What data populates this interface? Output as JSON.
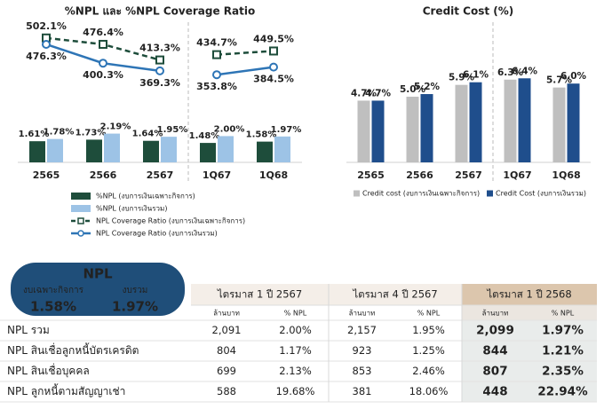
{
  "chart_data": [
    {
      "type": "combo",
      "title": "%NPL และ %NPL Coverage Ratio",
      "categories": [
        "2565",
        "2566",
        "2567",
        "1Q67",
        "1Q68"
      ],
      "ylim": [
        0,
        10
      ],
      "y2lim": [
        0,
        530
      ],
      "series": [
        {
          "name": "%NPL (งบการเงินเฉพาะกิจการ)",
          "type": "bar",
          "color": "#1e4d3b",
          "label_color": "#1e4d3b",
          "values": [
            1.61,
            1.73,
            1.64,
            1.48,
            1.58
          ],
          "value_labels": [
            "1.61%",
            "1.73%",
            "1.64%",
            "1.48%",
            "1.58%"
          ]
        },
        {
          "name": "%NPL (งบการเงินรวม)",
          "type": "bar",
          "color": "#9dc3e6",
          "label_color": "#2e75b6",
          "values": [
            1.78,
            2.19,
            1.95,
            2.0,
            1.97
          ],
          "value_labels": [
            "1.78%",
            "2.19%",
            "1.95%",
            "2.00%",
            "1.97%"
          ]
        },
        {
          "name": "NPL Coverage Ratio (งบการเงินเฉพาะกิจการ)",
          "type": "line",
          "axis": "y2",
          "dashed": true,
          "marker": "square",
          "color": "#1e4d3b",
          "label_color": "#1e4d3b",
          "values": [
            502.1,
            476.4,
            413.3,
            434.7,
            449.5
          ],
          "value_labels": [
            "502.1%",
            "476.4%",
            "413.3%",
            "434.7%",
            "449.5%"
          ]
        },
        {
          "name": "NPL Coverage Ratio (งบการเงินรวม)",
          "type": "line",
          "axis": "y2",
          "dashed": false,
          "marker": "circle",
          "color": "#2e75b6",
          "label_color": "#2e75b6",
          "values": [
            476.3,
            400.3,
            369.3,
            353.8,
            384.5
          ],
          "value_labels": [
            "476.3%",
            "400.3%",
            "369.3%",
            "353.8%",
            "384.5%"
          ]
        }
      ]
    },
    {
      "type": "bar",
      "title": "Credit Cost (%)",
      "categories": [
        "2565",
        "2566",
        "2567",
        "1Q67",
        "1Q68"
      ],
      "ylim": [
        0,
        10
      ],
      "series": [
        {
          "name": "Credit cost (งบการเงินเฉพาะกิจการ)",
          "color": "#bfbfbf",
          "label_color": "#404040",
          "values": [
            4.7,
            5.0,
            5.9,
            6.3,
            5.7
          ],
          "value_labels": [
            "4.7%",
            "5.0%",
            "5.9%",
            "6.3%",
            "5.7%"
          ]
        },
        {
          "name": "Credit Cost (งบการเงินรวม)",
          "color": "#1f4e8c",
          "label_color": "#1f4e8c",
          "values": [
            4.7,
            5.2,
            6.1,
            6.4,
            6.0
          ],
          "value_labels": [
            "4.7%",
            "5.2%",
            "6.1%",
            "6.4%",
            "6.0%"
          ]
        }
      ]
    }
  ],
  "npl_summary": {
    "title": "NPL",
    "items": [
      {
        "label": "งบเฉพาะกิจการ",
        "value": "1.58%"
      },
      {
        "label": "งบรวม",
        "value": "1.97%"
      }
    ]
  },
  "table": {
    "groups": [
      "ไตรมาส 1 ปี 2567",
      "ไตรมาส 4 ปี 2567",
      "ไตรมาส 1 ปี 2568"
    ],
    "subheaders": [
      "ล้านบาท",
      "% NPL",
      "ล้านบาท",
      "% NPL",
      "ล้านบาท",
      "% NPL"
    ],
    "rows": [
      [
        "NPL รวม",
        "2,091",
        "2.00%",
        "2,157",
        "1.95%",
        "2,099",
        "1.97%"
      ],
      [
        "NPL สินเชื่อลูกหนี้บัตรเครดิต",
        "804",
        "1.17%",
        "923",
        "1.25%",
        "844",
        "1.21%"
      ],
      [
        "NPL สินเชื่อบุคคล",
        "699",
        "2.13%",
        "853",
        "2.46%",
        "807",
        "2.35%"
      ],
      [
        "NPL ลูกหนี้ตามสัญญาเช่า",
        "588",
        "19.68%",
        "381",
        "18.06%",
        "448",
        "22.94%"
      ]
    ]
  }
}
